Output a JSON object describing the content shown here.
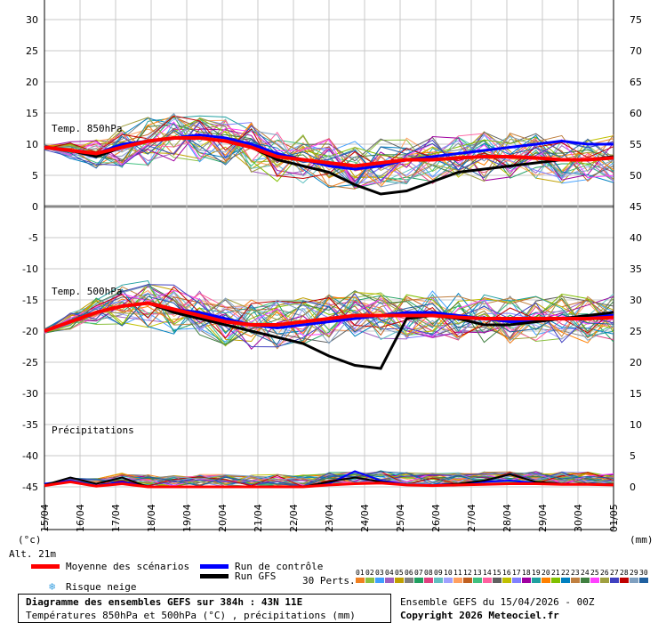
{
  "chart_data": {
    "type": "line",
    "left_axis_unit": "(°c)",
    "right_axis_unit": "(mm)",
    "left_ticks": [
      30,
      25,
      20,
      15,
      10,
      5,
      0,
      -5,
      -10,
      -15,
      -20,
      -25,
      -30,
      -35,
      -40,
      -45
    ],
    "right_ticks": [
      75,
      70,
      65,
      60,
      55,
      50,
      45,
      40,
      35,
      30,
      25,
      20,
      15,
      10,
      5,
      0
    ],
    "ylim": [
      -45,
      30
    ],
    "x_labels": [
      "15/04",
      "16/04",
      "17/04",
      "18/04",
      "19/04",
      "20/04",
      "21/04",
      "22/04",
      "23/04",
      "24/04",
      "25/04",
      "26/04",
      "27/04",
      "28/04",
      "29/04",
      "30/04",
      "01/05"
    ],
    "altitude_label": "Alt. 21m",
    "panel_labels": {
      "t850": "Temp. 850hPa",
      "t500": "Temp. 500hPa",
      "precip": "Précipitations"
    },
    "series": [
      {
        "name": "Moyenne des scénarios",
        "color": "#ff0000",
        "t850": [
          9.5,
          9,
          8.5,
          9.5,
          10.5,
          11,
          11,
          10.5,
          9.5,
          8,
          7.5,
          7,
          6.5,
          7,
          7.5,
          7.5,
          7.8,
          8,
          8,
          7.8,
          7.5,
          7.5,
          7.8
        ],
        "t500": [
          -20,
          -18.5,
          -17,
          -16,
          -15.5,
          -16.5,
          -17.5,
          -18.5,
          -19,
          -19,
          -18.5,
          -18,
          -17.5,
          -17.5,
          -17.5,
          -17.5,
          -17.8,
          -18,
          -18,
          -18,
          -18,
          -18,
          -17.8
        ],
        "precip": [
          0.2,
          0.8,
          0.1,
          0.5,
          0,
          0,
          0,
          0,
          0,
          0,
          0,
          0.3,
          0.5,
          0.6,
          0.3,
          0.2,
          0.3,
          0.4,
          0.5,
          0.5,
          0.4,
          0.4,
          0.3
        ]
      },
      {
        "name": "Run de contrôle",
        "color": "#0000ff",
        "t850": [
          9.5,
          9,
          8.5,
          10,
          10.5,
          11,
          11.5,
          11,
          10,
          8.5,
          7.5,
          6.5,
          6,
          6.5,
          7.5,
          8,
          8.5,
          9,
          9.5,
          10,
          10.5,
          10,
          10
        ],
        "t500": [
          -20,
          -18.5,
          -17,
          -16,
          -15.5,
          -16.5,
          -17,
          -18,
          -19,
          -19.5,
          -19,
          -18.5,
          -18,
          -17.5,
          -17,
          -17,
          -17.5,
          -18,
          -18.5,
          -18.5,
          -18,
          -17.5,
          -17.5
        ],
        "precip": [
          0.5,
          1,
          0.2,
          0.8,
          0,
          0,
          0,
          0,
          0,
          0,
          0,
          0.5,
          2.5,
          1,
          0.4,
          0.3,
          0.5,
          0.8,
          1,
          0.6,
          0.4,
          0.5,
          0.3
        ]
      },
      {
        "name": "Run GFS",
        "color": "#000000",
        "t850": [
          9.5,
          9,
          8,
          9.5,
          10.5,
          11,
          11,
          10.5,
          9.5,
          7.5,
          6.5,
          5.5,
          3.5,
          2,
          2.5,
          4,
          5.5,
          6,
          6.5,
          7,
          7.5,
          7.5,
          8
        ],
        "t500": [
          -20,
          -18.5,
          -17,
          -16,
          -15.5,
          -17,
          -18,
          -19,
          -20,
          -21,
          -22,
          -24,
          -25.5,
          -26,
          -18,
          -17.5,
          -18,
          -19,
          -19,
          -18.5,
          -18,
          -17.5,
          -17
        ],
        "precip": [
          0.3,
          1.5,
          0.5,
          1.5,
          0,
          0,
          0,
          0,
          0,
          0,
          0,
          0.8,
          1.5,
          0.8,
          0.3,
          0.2,
          0.5,
          1,
          2,
          0.8,
          0.5,
          0.5,
          0.4
        ]
      }
    ]
  },
  "legend": {
    "mean_label": "Moyenne des scénarios",
    "control_label": "Run de contrôle",
    "gfs_label": "Run GFS",
    "snow_label": "Risque neige",
    "perts_label": "30 Perts.",
    "pert_numbers": [
      "01",
      "02",
      "03",
      "04",
      "05",
      "06",
      "07",
      "08",
      "09",
      "10",
      "11",
      "12",
      "13",
      "14",
      "15",
      "16",
      "17",
      "18",
      "19",
      "20",
      "21",
      "22",
      "23",
      "24",
      "25",
      "26",
      "27",
      "28",
      "29",
      "30"
    ],
    "pert_colors": [
      "#f08020",
      "#8cc040",
      "#40a0ff",
      "#a060c0",
      "#c0a000",
      "#808080",
      "#20a060",
      "#e04080",
      "#60c0c0",
      "#a0a0ff",
      "#ffa060",
      "#c06020",
      "#40c080",
      "#ff60a0",
      "#606060",
      "#c0c000",
      "#8080ff",
      "#a000a0",
      "#20a0a0",
      "#ff8000",
      "#80c000",
      "#0080c0",
      "#c08040",
      "#408040",
      "#ff40ff",
      "#a0a040",
      "#4040c0",
      "#c00000",
      "#80a0c0",
      "#2060a0"
    ],
    "snow_color": "#3aa0e0"
  },
  "footer": {
    "title": "Diagramme des ensembles GEFS sur 384h : 43N 11E",
    "subtitle": "Températures 850hPa et 500hPa (°C) , précipitations (mm)",
    "run_info": "Ensemble GEFS du 15/04/2026 - 00Z",
    "copyright": "Copyright 2026 Meteociel.fr"
  }
}
